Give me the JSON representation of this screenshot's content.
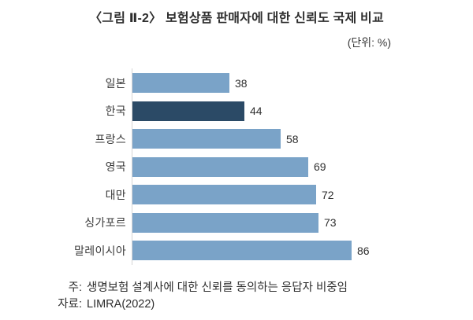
{
  "figure": {
    "title": "〈그림 Ⅱ-2〉 보험상품 판매자에 대한 신뢰도 국제 비교",
    "unit_label": "(단위: %)"
  },
  "chart_data": {
    "type": "bar",
    "orientation": "horizontal",
    "title": "보험상품 판매자에 대한 신뢰도 국제 비교",
    "categories": [
      "일본",
      "한국",
      "프랑스",
      "영국",
      "대만",
      "싱가포르",
      "말레이시아"
    ],
    "values": [
      38,
      44,
      58,
      69,
      72,
      73,
      86
    ],
    "unit": "%",
    "xlabel": "",
    "ylabel": "",
    "xlim": [
      0,
      90
    ],
    "grid": false,
    "value_labels": true,
    "legend": false,
    "highlight_category": "한국",
    "highlight_index": 1,
    "colors": {
      "bar": "#7AA3C8",
      "bar_highlight": "#2B4A66",
      "axis_line": "#D5D5D5",
      "text": "#333333"
    }
  },
  "notes": {
    "note_label": "주:",
    "note_text": "생명보험 설계사에 대한 신뢰를 동의하는 응답자 비중임",
    "source_label": "자료:",
    "source_text": "LIMRA(2022)"
  }
}
